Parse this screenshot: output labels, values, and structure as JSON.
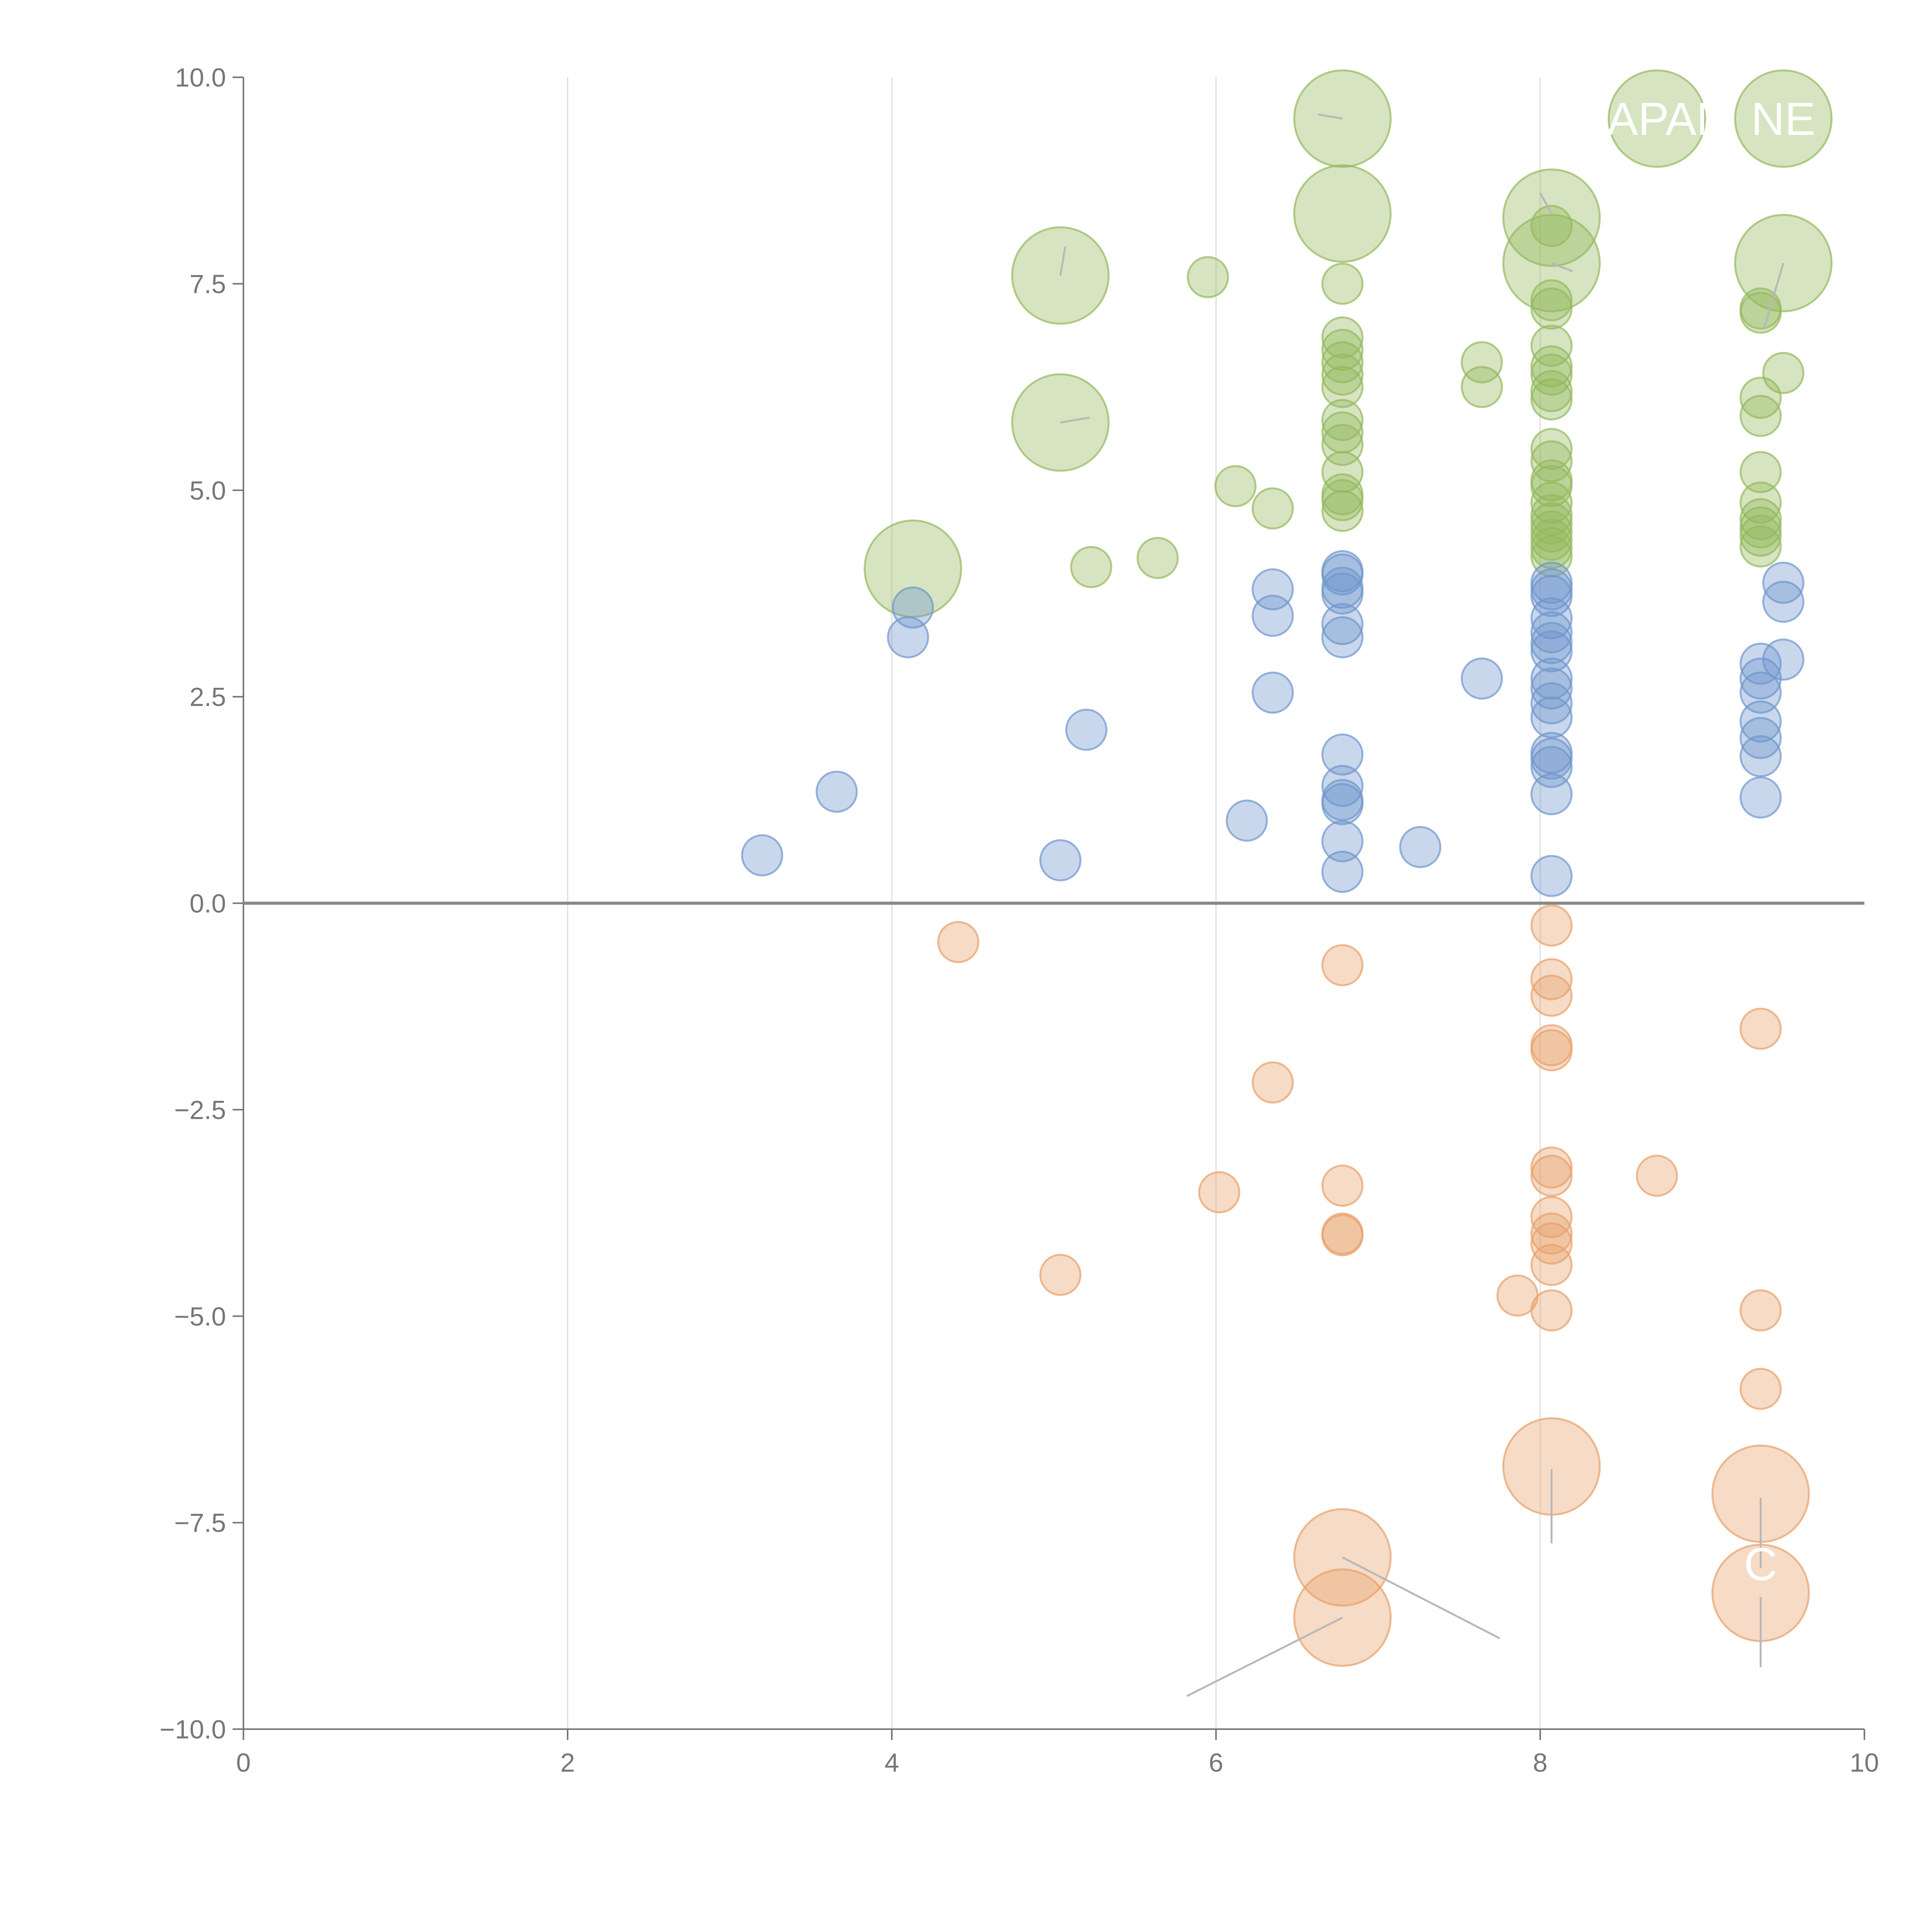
{
  "chart_data": {
    "type": "scatter",
    "title": "",
    "xlabel": "",
    "ylabel": "",
    "xlim": [
      0,
      10
    ],
    "ylim": [
      -10,
      10
    ],
    "xticks": [
      0,
      2,
      4,
      6,
      8,
      10
    ],
    "yticks": [
      10,
      7.5,
      5,
      2.5,
      0,
      -2.5,
      -5,
      -7.5,
      -10
    ],
    "xtick_labels": [
      "0",
      "2",
      "4",
      "6",
      "8",
      "10"
    ],
    "ytick_labels": [
      "10.0",
      "7.5",
      "5.0",
      "2.5",
      "0.0",
      "−2.5",
      "−5.0",
      "−7.5",
      "−10.0"
    ],
    "grid": "vertical",
    "legend": "none",
    "colors": {
      "positive-strong": "#94b85c",
      "positive-weak": "#6f95cc",
      "negative": "#e8a06a",
      "axis": "#777777",
      "grid": "#dddddd",
      "zero-line": "#888888",
      "leader": "#b8b8b8"
    },
    "series": [
      {
        "name": "positive-strong",
        "color": "#94b85c",
        "points": [
          {
            "x": 6.78,
            "y": 9.5,
            "s": 2.4
          },
          {
            "x": 8.72,
            "y": 9.5,
            "s": 2.4
          },
          {
            "x": 9.5,
            "y": 9.5,
            "s": 2.4
          },
          {
            "x": 6.78,
            "y": 8.35,
            "s": 2.4
          },
          {
            "x": 8.07,
            "y": 8.3,
            "s": 2.4
          },
          {
            "x": 8.07,
            "y": 7.75,
            "s": 2.4
          },
          {
            "x": 9.5,
            "y": 7.75,
            "s": 2.4
          },
          {
            "x": 5.04,
            "y": 7.6,
            "s": 2.4
          },
          {
            "x": 5.04,
            "y": 5.82,
            "s": 2.4
          },
          {
            "x": 4.13,
            "y": 4.05,
            "s": 2.4
          },
          {
            "x": 5.95,
            "y": 7.58,
            "s": 1
          },
          {
            "x": 6.78,
            "y": 7.5,
            "s": 1
          },
          {
            "x": 8.07,
            "y": 8.2,
            "s": 1
          },
          {
            "x": 8.07,
            "y": 7.3,
            "s": 1
          },
          {
            "x": 8.07,
            "y": 7.2,
            "s": 1
          },
          {
            "x": 9.36,
            "y": 7.2,
            "s": 1
          },
          {
            "x": 9.36,
            "y": 7.15,
            "s": 1
          },
          {
            "x": 6.78,
            "y": 6.85,
            "s": 1
          },
          {
            "x": 6.78,
            "y": 6.7,
            "s": 1
          },
          {
            "x": 6.78,
            "y": 6.55,
            "s": 1
          },
          {
            "x": 6.78,
            "y": 6.4,
            "s": 1
          },
          {
            "x": 6.78,
            "y": 6.25,
            "s": 1
          },
          {
            "x": 7.64,
            "y": 6.55,
            "s": 1
          },
          {
            "x": 7.64,
            "y": 6.25,
            "s": 1
          },
          {
            "x": 8.07,
            "y": 6.75,
            "s": 1
          },
          {
            "x": 8.07,
            "y": 6.5,
            "s": 1
          },
          {
            "x": 8.07,
            "y": 6.4,
            "s": 1
          },
          {
            "x": 8.07,
            "y": 6.2,
            "s": 1
          },
          {
            "x": 8.07,
            "y": 6.1,
            "s": 1
          },
          {
            "x": 9.5,
            "y": 6.42,
            "s": 1
          },
          {
            "x": 9.36,
            "y": 6.12,
            "s": 1
          },
          {
            "x": 9.36,
            "y": 5.9,
            "s": 1
          },
          {
            "x": 6.78,
            "y": 5.85,
            "s": 1
          },
          {
            "x": 6.78,
            "y": 5.7,
            "s": 1
          },
          {
            "x": 6.78,
            "y": 5.55,
            "s": 1
          },
          {
            "x": 6.78,
            "y": 5.22,
            "s": 1
          },
          {
            "x": 8.07,
            "y": 5.5,
            "s": 1
          },
          {
            "x": 8.07,
            "y": 5.35,
            "s": 1
          },
          {
            "x": 8.07,
            "y": 5.12,
            "s": 1
          },
          {
            "x": 8.07,
            "y": 5.05,
            "s": 1
          },
          {
            "x": 9.36,
            "y": 5.22,
            "s": 1
          },
          {
            "x": 6.12,
            "y": 5.05,
            "s": 1
          },
          {
            "x": 6.78,
            "y": 4.95,
            "s": 1
          },
          {
            "x": 6.78,
            "y": 4.88,
            "s": 1
          },
          {
            "x": 6.78,
            "y": 4.75,
            "s": 1
          },
          {
            "x": 6.35,
            "y": 4.78,
            "s": 1
          },
          {
            "x": 8.07,
            "y": 4.85,
            "s": 1
          },
          {
            "x": 8.07,
            "y": 4.7,
            "s": 1
          },
          {
            "x": 8.07,
            "y": 4.6,
            "s": 1
          },
          {
            "x": 8.07,
            "y": 4.5,
            "s": 1
          },
          {
            "x": 8.07,
            "y": 4.4,
            "s": 1
          },
          {
            "x": 8.07,
            "y": 4.3,
            "s": 1
          },
          {
            "x": 8.07,
            "y": 4.2,
            "s": 1
          },
          {
            "x": 9.36,
            "y": 4.85,
            "s": 1
          },
          {
            "x": 9.36,
            "y": 4.65,
            "s": 1
          },
          {
            "x": 9.36,
            "y": 4.55,
            "s": 1
          },
          {
            "x": 9.36,
            "y": 4.45,
            "s": 1
          },
          {
            "x": 9.36,
            "y": 4.32,
            "s": 1
          },
          {
            "x": 5.64,
            "y": 4.18,
            "s": 1
          },
          {
            "x": 5.23,
            "y": 4.07,
            "s": 1
          }
        ]
      },
      {
        "name": "positive-weak",
        "color": "#6f95cc",
        "points": [
          {
            "x": 6.78,
            "y": 4.02,
            "s": 1
          },
          {
            "x": 6.78,
            "y": 3.98,
            "s": 1
          },
          {
            "x": 6.78,
            "y": 3.82,
            "s": 1
          },
          {
            "x": 6.78,
            "y": 3.75,
            "s": 1
          },
          {
            "x": 6.78,
            "y": 3.38,
            "s": 1
          },
          {
            "x": 6.78,
            "y": 3.22,
            "s": 1
          },
          {
            "x": 8.07,
            "y": 3.88,
            "s": 1
          },
          {
            "x": 8.07,
            "y": 3.8,
            "s": 1
          },
          {
            "x": 8.07,
            "y": 3.72,
            "s": 1
          },
          {
            "x": 8.07,
            "y": 3.45,
            "s": 1
          },
          {
            "x": 8.07,
            "y": 3.28,
            "s": 1
          },
          {
            "x": 8.07,
            "y": 3.15,
            "s": 1
          },
          {
            "x": 8.07,
            "y": 3.05,
            "s": 1
          },
          {
            "x": 8.07,
            "y": 2.72,
            "s": 1
          },
          {
            "x": 8.07,
            "y": 2.6,
            "s": 1
          },
          {
            "x": 8.07,
            "y": 2.42,
            "s": 1
          },
          {
            "x": 8.07,
            "y": 2.25,
            "s": 1
          },
          {
            "x": 8.07,
            "y": 1.82,
            "s": 1
          },
          {
            "x": 8.07,
            "y": 1.75,
            "s": 1
          },
          {
            "x": 8.07,
            "y": 1.65,
            "s": 1
          },
          {
            "x": 8.07,
            "y": 1.32,
            "s": 1
          },
          {
            "x": 8.07,
            "y": 0.33,
            "s": 1
          },
          {
            "x": 6.35,
            "y": 3.8,
            "s": 1
          },
          {
            "x": 6.35,
            "y": 3.48,
            "s": 1
          },
          {
            "x": 6.35,
            "y": 2.55,
            "s": 1
          },
          {
            "x": 9.5,
            "y": 3.88,
            "s": 1
          },
          {
            "x": 9.5,
            "y": 3.65,
            "s": 1
          },
          {
            "x": 9.5,
            "y": 2.95,
            "s": 1
          },
          {
            "x": 9.36,
            "y": 2.9,
            "s": 1
          },
          {
            "x": 9.36,
            "y": 2.72,
            "s": 1
          },
          {
            "x": 9.36,
            "y": 2.55,
            "s": 1
          },
          {
            "x": 9.36,
            "y": 2.2,
            "s": 1
          },
          {
            "x": 9.36,
            "y": 2.0,
            "s": 1
          },
          {
            "x": 9.36,
            "y": 1.78,
            "s": 1
          },
          {
            "x": 9.36,
            "y": 1.28,
            "s": 1
          },
          {
            "x": 4.13,
            "y": 3.58,
            "s": 1
          },
          {
            "x": 4.1,
            "y": 3.22,
            "s": 1
          },
          {
            "x": 7.64,
            "y": 2.72,
            "s": 1
          },
          {
            "x": 5.2,
            "y": 2.1,
            "s": 1
          },
          {
            "x": 6.78,
            "y": 1.8,
            "s": 1
          },
          {
            "x": 6.78,
            "y": 1.42,
            "s": 1
          },
          {
            "x": 6.78,
            "y": 1.25,
            "s": 1
          },
          {
            "x": 6.78,
            "y": 1.2,
            "s": 1
          },
          {
            "x": 6.78,
            "y": 0.75,
            "s": 1
          },
          {
            "x": 6.78,
            "y": 0.38,
            "s": 1
          },
          {
            "x": 3.66,
            "y": 1.35,
            "s": 1
          },
          {
            "x": 6.19,
            "y": 1.0,
            "s": 1
          },
          {
            "x": 7.26,
            "y": 0.68,
            "s": 1
          },
          {
            "x": 3.2,
            "y": 0.58,
            "s": 1
          },
          {
            "x": 5.04,
            "y": 0.52,
            "s": 1
          }
        ]
      },
      {
        "name": "negative",
        "color": "#e8a06a",
        "points": [
          {
            "x": 8.07,
            "y": -0.27,
            "s": 1
          },
          {
            "x": 4.41,
            "y": -0.47,
            "s": 1
          },
          {
            "x": 6.78,
            "y": -0.75,
            "s": 1
          },
          {
            "x": 8.07,
            "y": -0.92,
            "s": 1
          },
          {
            "x": 8.07,
            "y": -1.12,
            "s": 1
          },
          {
            "x": 9.36,
            "y": -1.52,
            "s": 1
          },
          {
            "x": 8.07,
            "y": -1.72,
            "s": 1
          },
          {
            "x": 8.07,
            "y": -1.78,
            "s": 1
          },
          {
            "x": 6.35,
            "y": -2.17,
            "s": 1
          },
          {
            "x": 8.07,
            "y": -3.2,
            "s": 1
          },
          {
            "x": 8.07,
            "y": -3.3,
            "s": 1
          },
          {
            "x": 8.72,
            "y": -3.3,
            "s": 1
          },
          {
            "x": 6.78,
            "y": -3.42,
            "s": 1
          },
          {
            "x": 6.02,
            "y": -3.5,
            "s": 1
          },
          {
            "x": 8.07,
            "y": -3.8,
            "s": 1
          },
          {
            "x": 6.78,
            "y": -4.0,
            "s": 1
          },
          {
            "x": 6.78,
            "y": -4.02,
            "s": 1
          },
          {
            "x": 8.07,
            "y": -4.0,
            "s": 1
          },
          {
            "x": 8.07,
            "y": -4.12,
            "s": 1
          },
          {
            "x": 8.07,
            "y": -4.38,
            "s": 1
          },
          {
            "x": 5.04,
            "y": -4.5,
            "s": 1
          },
          {
            "x": 7.86,
            "y": -4.75,
            "s": 1
          },
          {
            "x": 8.07,
            "y": -4.93,
            "s": 1
          },
          {
            "x": 9.36,
            "y": -4.93,
            "s": 1
          },
          {
            "x": 9.36,
            "y": -5.88,
            "s": 1
          },
          {
            "x": 8.07,
            "y": -6.82,
            "s": 2.4
          },
          {
            "x": 9.36,
            "y": -7.15,
            "s": 2.4
          },
          {
            "x": 6.78,
            "y": -7.92,
            "s": 2.4
          },
          {
            "x": 9.36,
            "y": -8.35,
            "s": 2.4
          },
          {
            "x": 6.78,
            "y": -8.65,
            "s": 2.4
          }
        ]
      }
    ],
    "annotations": [
      {
        "text": "JAPAN",
        "x": 8.72,
        "y": 9.5
      },
      {
        "text": "NE",
        "x": 9.5,
        "y": 9.5
      },
      {
        "text": "C",
        "x": 9.36,
        "y": -8.0
      }
    ],
    "leader_lines": [
      {
        "x1": 6.78,
        "y1": -7.92,
        "x2": 7.75,
        "y2": -8.9
      },
      {
        "x1": 6.78,
        "y1": -8.65,
        "x2": 5.82,
        "y2": -9.6
      },
      {
        "x1": 8.07,
        "y1": -6.85,
        "x2": 8.07,
        "y2": -7.75
      },
      {
        "x1": 9.36,
        "y1": -7.2,
        "x2": 9.36,
        "y2": -8.05
      },
      {
        "x1": 9.36,
        "y1": -8.4,
        "x2": 9.36,
        "y2": -9.25
      },
      {
        "x1": 6.78,
        "y1": 9.5,
        "x2": 6.63,
        "y2": 9.55
      },
      {
        "x1": 8.07,
        "y1": 8.35,
        "x2": 8.0,
        "y2": 8.6
      },
      {
        "x1": 8.07,
        "y1": 7.75,
        "x2": 8.2,
        "y2": 7.65
      },
      {
        "x1": 9.5,
        "y1": 7.75,
        "x2": 9.38,
        "y2": 6.95
      },
      {
        "x1": 5.04,
        "y1": 7.6,
        "x2": 5.07,
        "y2": 7.95
      },
      {
        "x1": 5.04,
        "y1": 5.82,
        "x2": 5.22,
        "y2": 5.88
      }
    ]
  }
}
